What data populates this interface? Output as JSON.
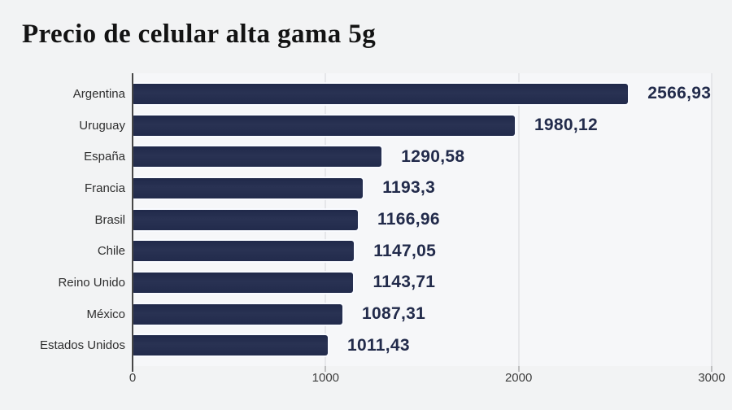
{
  "title": "Precio de celular alta gama 5g",
  "chart_data": {
    "type": "bar",
    "orientation": "horizontal",
    "title": "Precio de celular alta gama 5g",
    "categories": [
      "Argentina",
      "Uruguay",
      "España",
      "Francia",
      "Brasil",
      "Chile",
      "Reino Unido",
      "México",
      "Estados Unidos"
    ],
    "values": [
      2566.93,
      1980.12,
      1290.58,
      1193.3,
      1166.96,
      1147.05,
      1143.71,
      1087.31,
      1011.43
    ],
    "value_labels": [
      "2566,93",
      "1980,12",
      "1290,58",
      "1193,3",
      "1166,96",
      "1147,05",
      "1143,71",
      "1087,31",
      "1011,43"
    ],
    "xlabel": "",
    "ylabel": "",
    "xlim": [
      0,
      3000
    ],
    "x_ticks": [
      "0",
      "1000",
      "2000",
      "3000"
    ],
    "grid": true,
    "legend": "none",
    "bar_color": "#232c4e",
    "value_label_color": "#222b4b",
    "category_label_color": "#2e2e2e",
    "gridline_color": "#d6d7da",
    "axis_color": "#474747",
    "background_color": "#f2f3f4"
  }
}
